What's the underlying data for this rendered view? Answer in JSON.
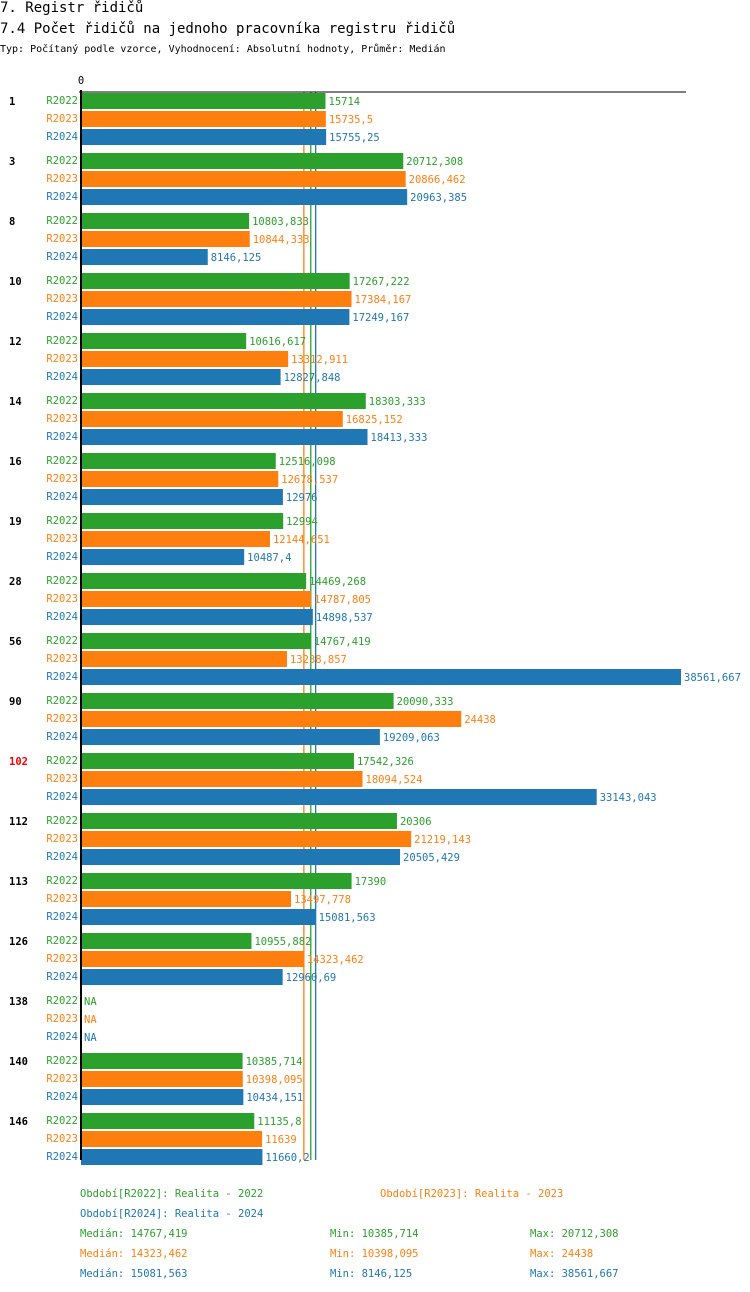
{
  "header": {
    "section": "7. Registr řidičů",
    "title": "7.4 Počet řidičů na jednoho pracovníka registru řidičů",
    "subtitle": "Typ: Počítaný podle vzorce, Vyhodnocení: Absolutní hodnoty, Průměr: Medián"
  },
  "colors": {
    "R2022": "#2ca02c",
    "R2023": "#ff7f0e",
    "R2024": "#1f77b4",
    "highlight": "#ff0000"
  },
  "chart_data": {
    "type": "bar",
    "orientation": "horizontal",
    "xlim": [
      0,
      38561.667
    ],
    "x_tick_labels": [
      "0"
    ],
    "series_names": [
      "R2022",
      "R2023",
      "R2024"
    ],
    "highlighted_category": "102",
    "categories": [
      {
        "label": "1",
        "values": [
          15714,
          15735.5,
          15755.25
        ],
        "labels": [
          "15714",
          "15735,5",
          "15755,25"
        ]
      },
      {
        "label": "3",
        "values": [
          20712.308,
          20866.462,
          20963.385
        ],
        "labels": [
          "20712,308",
          "20866,462",
          "20963,385"
        ]
      },
      {
        "label": "8",
        "values": [
          10803.833,
          10844.333,
          8146.125
        ],
        "labels": [
          "10803,833",
          "10844,333",
          "8146,125"
        ]
      },
      {
        "label": "10",
        "values": [
          17267.222,
          17384.167,
          17249.167
        ],
        "labels": [
          "17267,222",
          "17384,167",
          "17249,167"
        ]
      },
      {
        "label": "12",
        "values": [
          10616.617,
          13312.911,
          12827.848
        ],
        "labels": [
          "10616,617",
          "13312,911",
          "12827,848"
        ]
      },
      {
        "label": "14",
        "values": [
          18303.333,
          16825.152,
          18413.333
        ],
        "labels": [
          "18303,333",
          "16825,152",
          "18413,333"
        ]
      },
      {
        "label": "16",
        "values": [
          12516.098,
          12678.537,
          12976
        ],
        "labels": [
          "12516,098",
          "12678,537",
          "12976"
        ]
      },
      {
        "label": "19",
        "values": [
          12994,
          12144.651,
          10487.4
        ],
        "labels": [
          "12994",
          "12144,651",
          "10487,4"
        ]
      },
      {
        "label": "28",
        "values": [
          14469.268,
          14787.805,
          14898.537
        ],
        "labels": [
          "14469,268",
          "14787,805",
          "14898,537"
        ]
      },
      {
        "label": "56",
        "values": [
          14767.419,
          13238.857,
          38561.667
        ],
        "labels": [
          "14767,419",
          "13238,857",
          "38561,667"
        ]
      },
      {
        "label": "90",
        "values": [
          20090.333,
          24438,
          19209.063
        ],
        "labels": [
          "20090,333",
          "24438",
          "19209,063"
        ]
      },
      {
        "label": "102",
        "values": [
          17542.326,
          18094.524,
          33143.043
        ],
        "labels": [
          "17542,326",
          "18094,524",
          "33143,043"
        ]
      },
      {
        "label": "112",
        "values": [
          20306,
          21219.143,
          20505.429
        ],
        "labels": [
          "20306",
          "21219,143",
          "20505,429"
        ]
      },
      {
        "label": "113",
        "values": [
          17390,
          13497.778,
          15081.563
        ],
        "labels": [
          "17390",
          "13497,778",
          "15081,563"
        ]
      },
      {
        "label": "126",
        "values": [
          10955.882,
          14323.462,
          12960.69
        ],
        "labels": [
          "10955,882",
          "14323,462",
          "12960,69"
        ]
      },
      {
        "label": "138",
        "values": [
          null,
          null,
          null
        ],
        "labels": [
          "NA",
          "NA",
          "NA"
        ]
      },
      {
        "label": "140",
        "values": [
          10385.714,
          10398.095,
          10434.151
        ],
        "labels": [
          "10385,714",
          "10398,095",
          "10434,151"
        ]
      },
      {
        "label": "146",
        "values": [
          11135.8,
          11639,
          11660.2
        ],
        "labels": [
          "11135,8",
          "11639",
          "11660,2"
        ]
      }
    ],
    "medians": [
      14767.419,
      14323.462,
      15081.563
    ]
  },
  "legend": {
    "periods": [
      "Období[R2022]: Realita - 2022",
      "Období[R2023]: Realita - 2023",
      "Období[R2024]: Realita - 2024"
    ],
    "stats": [
      {
        "median": "Medián: 14767,419",
        "min": "Min: 10385,714",
        "max": "Max: 20712,308"
      },
      {
        "median": "Medián: 14323,462",
        "min": "Min: 10398,095",
        "max": "Max: 24438"
      },
      {
        "median": "Medián: 15081,563",
        "min": "Min: 8146,125",
        "max": "Max: 38561,667"
      }
    ]
  }
}
